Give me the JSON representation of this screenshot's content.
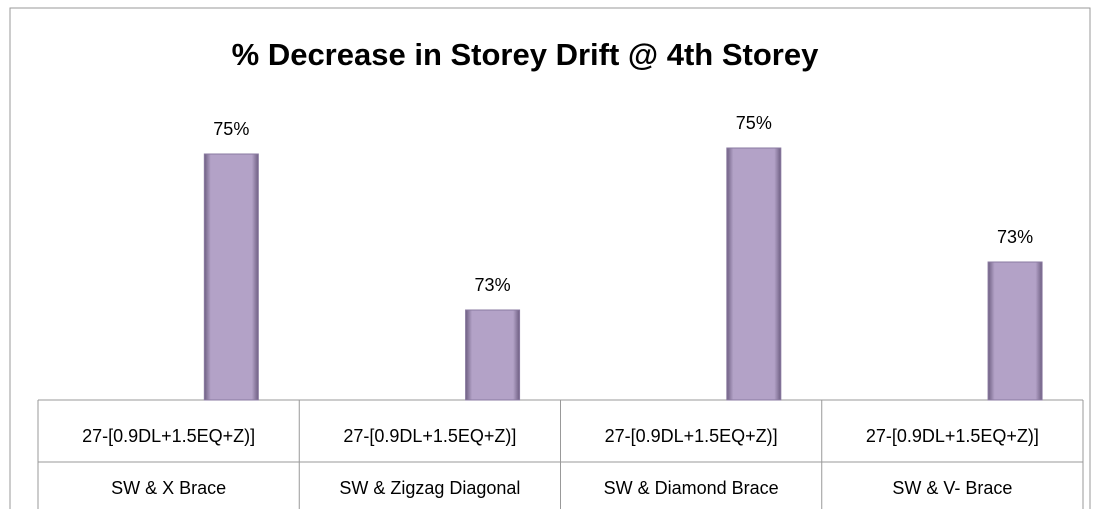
{
  "chart_data": {
    "type": "bar",
    "title": "% Decrease in Storey Drift @ 4th Storey",
    "categories": [
      [
        "27-[0.9DL+1.5EQ+Z)]",
        "SW & X Brace"
      ],
      [
        "27-[0.9DL+1.5EQ+Z)]",
        "SW & Zigzag Diagonal"
      ],
      [
        "27-[0.9DL+1.5EQ+Z)]",
        "SW & Diamond Brace"
      ],
      [
        "27-[0.9DL+1.5EQ+Z)]",
        "SW & V- Brace"
      ]
    ],
    "values": [
      75.2,
      72.6,
      75.3,
      73.4
    ],
    "value_labels": [
      "75%",
      "73%",
      "75%",
      "73%"
    ],
    "color": "#b3a2c7",
    "ylim": [
      71.1,
      76.1
    ]
  }
}
